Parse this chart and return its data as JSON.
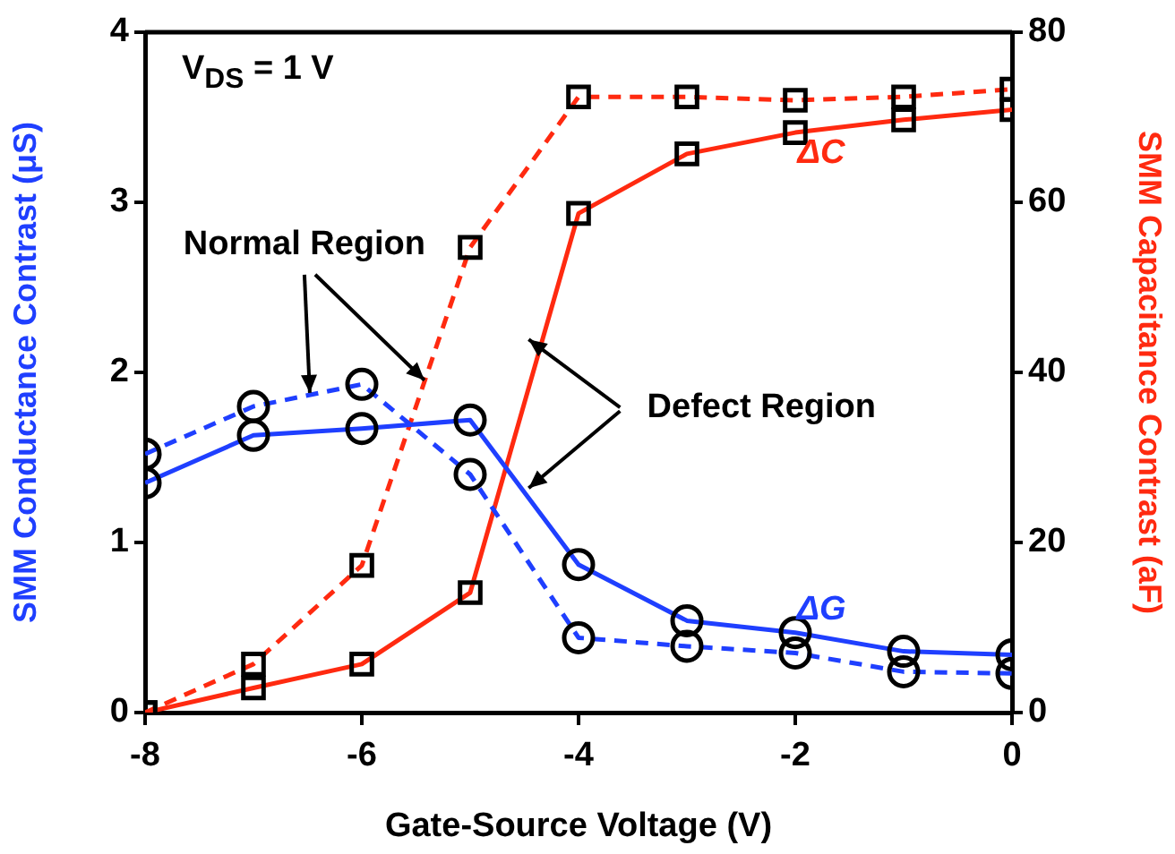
{
  "chart_data": {
    "type": "line",
    "xlabel": "Gate-Source Voltage (V)",
    "ylabel": "SMM Conductance Contrast (μS)",
    "y2label": "SMM Capacitance Contrast (aF)",
    "x": [
      -8,
      -7,
      -6,
      -5,
      -4,
      -3,
      -2,
      -1,
      0
    ],
    "xlim": [
      -8,
      0
    ],
    "xticks": [
      -8,
      -6,
      -4,
      -2,
      0
    ],
    "ylim": [
      0,
      4
    ],
    "yticks": [
      0,
      1,
      2,
      3,
      4
    ],
    "y2lim": [
      0,
      80
    ],
    "y2ticks": [
      0,
      20,
      40,
      60,
      80
    ],
    "series": [
      {
        "color": "#1f3fff",
        "line_style": "solid",
        "marker": "circle",
        "values": [
          1.35,
          1.63,
          1.67,
          1.72,
          0.87,
          0.54,
          0.47,
          0.36,
          0.34
        ]
      },
      {
        "color": "#1f3fff",
        "line_style": "dashed",
        "marker": "circle",
        "values": [
          1.52,
          1.8,
          1.93,
          1.4,
          0.44,
          0.39,
          0.35,
          0.24,
          0.23
        ]
      },
      {
        "color": "#ff2a10",
        "line_style": "solid",
        "marker": "square",
        "axis": "y2",
        "values": [
          0,
          2.9,
          5.7,
          14.1,
          58.7,
          65.7,
          68.2,
          69.7,
          70.9
        ]
      },
      {
        "color": "#ff2a10",
        "line_style": "dashed",
        "marker": "square",
        "axis": "y2",
        "values": [
          0,
          5.7,
          17.3,
          54.7,
          72.4,
          72.4,
          72,
          72.4,
          73.3
        ]
      }
    ],
    "annotations": [
      "V$_{DS}$ = 1 V",
      {
        "text": "Normal Region",
        "x": -6.48,
        "y": 1.88
      },
      {
        "text": "Defect Region",
        "x": -4.46,
        "y": 1.32
      },
      "ΔC",
      "ΔG"
    ],
    "grid": false,
    "legend": false
  }
}
